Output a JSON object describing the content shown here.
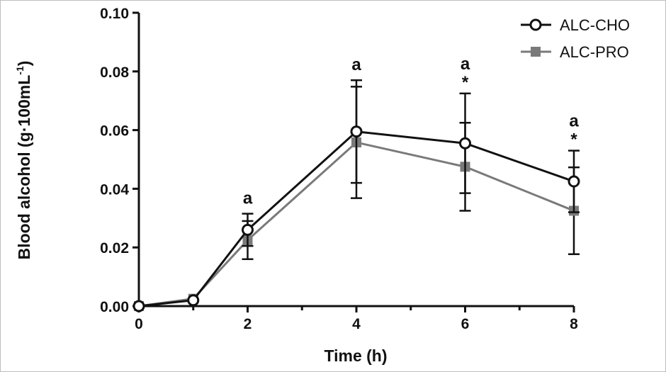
{
  "chart_data": {
    "type": "line",
    "xlabel": "Time (h)",
    "ylabel": "Blood alcohol (g·100mL",
    "ylabel_sup": "-1",
    "ylabel_close": ")",
    "xlim": [
      0,
      8
    ],
    "ylim": [
      0,
      0.1
    ],
    "xticks": [
      "0",
      "2",
      "4",
      "6",
      "8"
    ],
    "yticks": [
      "0.00",
      "0.02",
      "0.04",
      "0.06",
      "0.08",
      "0.10"
    ],
    "grid": false,
    "legend_position": "top-right",
    "series": [
      {
        "name": "ALC-CHO",
        "color": "#111111",
        "marker": "open-circle",
        "x": [
          0,
          1,
          2,
          4,
          6,
          8
        ],
        "y": [
          0.0,
          0.002,
          0.026,
          0.0595,
          0.0555,
          0.0425
        ],
        "error": [
          0.0,
          0.001,
          0.0055,
          0.0175,
          0.017,
          0.0105
        ]
      },
      {
        "name": "ALC-PRO",
        "color": "#7a7a7a",
        "marker": "filled-square",
        "x": [
          0,
          1,
          2,
          4,
          6,
          8
        ],
        "y": [
          0.0,
          0.0025,
          0.0225,
          0.0558,
          0.0475,
          0.0325
        ],
        "error": [
          0.0,
          0.001,
          0.0065,
          0.019,
          0.015,
          0.0148
        ]
      }
    ],
    "annotations": [
      {
        "x": 2,
        "lines": [
          "a"
        ],
        "top": 0.0315
      },
      {
        "x": 4,
        "lines": [
          "a"
        ],
        "top": 0.077
      },
      {
        "x": 6,
        "lines": [
          "a",
          "*"
        ],
        "top": 0.0725
      },
      {
        "x": 8,
        "lines": [
          "a",
          "*"
        ],
        "top": 0.053
      }
    ]
  }
}
